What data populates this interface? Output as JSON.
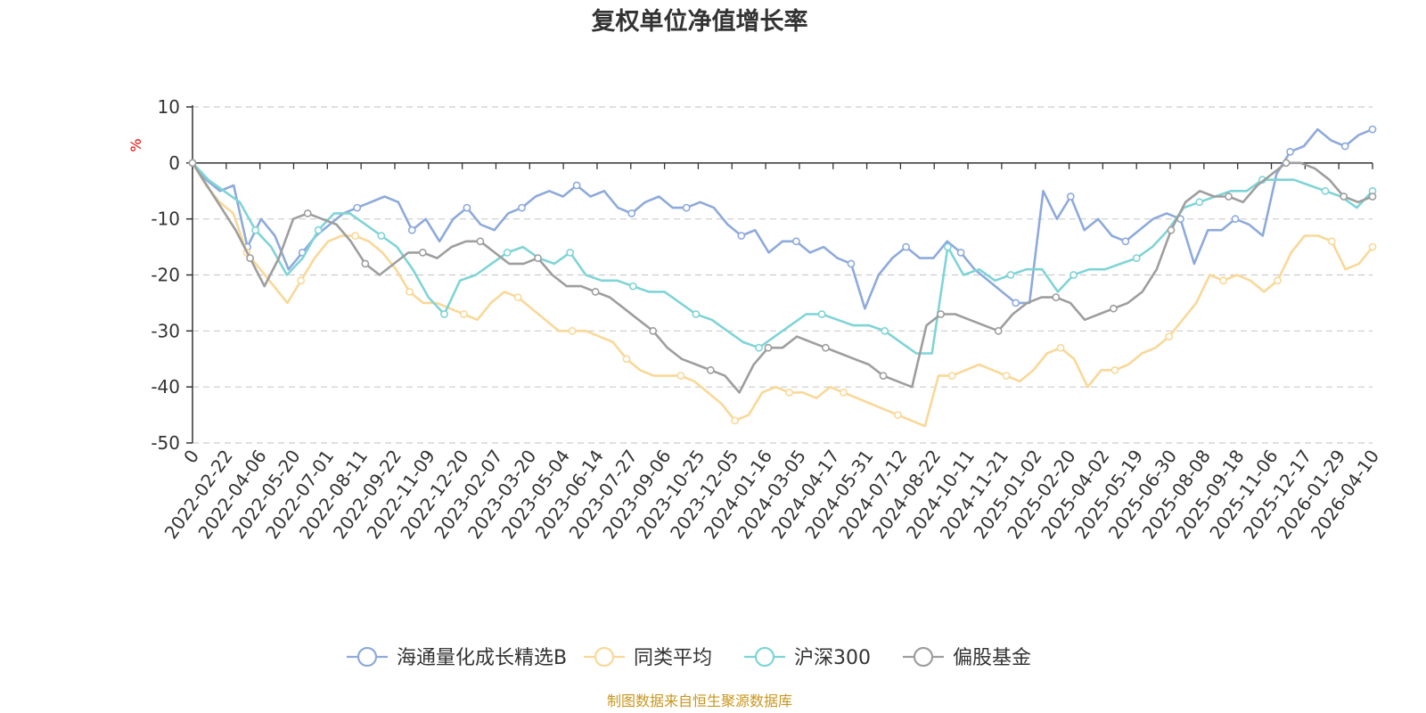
{
  "chart_data": {
    "type": "line",
    "title": "复权单位净值增长率",
    "ylabel": "%",
    "xlabel": "",
    "ylim": [
      -50,
      10
    ],
    "yticks": [
      10,
      0,
      -10,
      -20,
      -30,
      -40,
      -50
    ],
    "grid": true,
    "legend_position": "bottom-center",
    "source": "制图数据来自恒生聚源数据库",
    "x_tick_labels": [
      "0",
      "2022-02-22",
      "2022-04-06",
      "2022-05-20",
      "2022-07-01",
      "2022-08-11",
      "2022-09-22",
      "2022-11-09",
      "2022-12-20",
      "2023-02-07",
      "2023-03-20",
      "2023-05-04",
      "2023-06-14",
      "2023-07-27",
      "2023-09-06",
      "2023-10-25",
      "2023-12-05",
      "2024-01-16",
      "2024-03-05",
      "2024-04-17",
      "2024-05-31",
      "2024-07-12",
      "2024-08-22",
      "2024-10-11",
      "2024-11-21",
      "2025-01-02",
      "2025-02-20",
      "2025-04-02",
      "2025-05-19",
      "2025-06-30",
      "2025-08-08",
      "2025-09-18",
      "2025-11-06",
      "2025-12-17",
      "2026-01-29",
      "2026-04-10"
    ],
    "series": [
      {
        "name": "海通量化成长精选B",
        "color": "#8eaadb",
        "values": [
          0,
          -3,
          -5,
          -4,
          -15,
          -10,
          -13,
          -19,
          -16,
          -13,
          -11,
          -9,
          -8,
          -7,
          -6,
          -7,
          -12,
          -10,
          -14,
          -10,
          -8,
          -11,
          -12,
          -9,
          -8,
          -6,
          -5,
          -6,
          -4,
          -6,
          -5,
          -8,
          -9,
          -7,
          -6,
          -8,
          -8,
          -7,
          -8,
          -11,
          -13,
          -12,
          -16,
          -14,
          -14,
          -16,
          -15,
          -17,
          -18,
          -26,
          -20,
          -17,
          -15,
          -17,
          -17,
          -14,
          -16,
          -19,
          -21,
          -23,
          -25,
          -25,
          -5,
          -10,
          -6,
          -12,
          -10,
          -13,
          -14,
          -12,
          -10,
          -9,
          -10,
          -18,
          -12,
          -12,
          -10,
          -11,
          -13,
          -2,
          2,
          3,
          6,
          4,
          3,
          5,
          6
        ]
      },
      {
        "name": "同类平均",
        "color": "#f9d898",
        "values": [
          0,
          -4,
          -7,
          -9,
          -16,
          -19,
          -22,
          -25,
          -21,
          -17,
          -14,
          -13,
          -13,
          -14,
          -16,
          -19,
          -23,
          -25,
          -25,
          -26,
          -27,
          -28,
          -25,
          -23,
          -24,
          -26,
          -28,
          -30,
          -30,
          -30,
          -31,
          -32,
          -35,
          -37,
          -38,
          -38,
          -38,
          -39,
          -41,
          -43,
          -46,
          -45,
          -41,
          -40,
          -41,
          -41,
          -42,
          -40,
          -41,
          -42,
          -43,
          -44,
          -45,
          -46,
          -47,
          -38,
          -38,
          -37,
          -36,
          -37,
          -38,
          -39,
          -37,
          -34,
          -33,
          -35,
          -40,
          -37,
          -37,
          -36,
          -34,
          -33,
          -31,
          -28,
          -25,
          -20,
          -21,
          -20,
          -21,
          -23,
          -21,
          -16,
          -13,
          -13,
          -14,
          -19,
          -18,
          -15
        ]
      },
      {
        "name": "沪深300",
        "color": "#7fd4d6",
        "values": [
          0,
          -3,
          -5,
          -7,
          -12,
          -15,
          -20,
          -17,
          -12,
          -9,
          -9,
          -11,
          -13,
          -15,
          -19,
          -24,
          -27,
          -21,
          -20,
          -18,
          -16,
          -15,
          -17,
          -18,
          -16,
          -20,
          -21,
          -21,
          -22,
          -23,
          -23,
          -25,
          -27,
          -28,
          -30,
          -32,
          -33,
          -31,
          -29,
          -27,
          -27,
          -28,
          -29,
          -29,
          -30,
          -32,
          -34,
          -34,
          -15,
          -20,
          -19,
          -21,
          -20,
          -19,
          -19,
          -23,
          -20,
          -19,
          -19,
          -18,
          -17,
          -15,
          -12,
          -8,
          -7,
          -6,
          -5,
          -5,
          -3,
          -3,
          -3,
          -4,
          -5,
          -6,
          -8,
          -5
        ]
      },
      {
        "name": "偏股基金",
        "color": "#9e9e9e",
        "values": [
          0,
          -4,
          -8,
          -12,
          -17,
          -22,
          -17,
          -10,
          -9,
          -10,
          -11,
          -14,
          -18,
          -20,
          -18,
          -16,
          -16,
          -17,
          -15,
          -14,
          -14,
          -16,
          -18,
          -18,
          -17,
          -20,
          -22,
          -22,
          -23,
          -24,
          -26,
          -28,
          -30,
          -33,
          -35,
          -36,
          -37,
          -38,
          -41,
          -36,
          -33,
          -33,
          -31,
          -32,
          -33,
          -34,
          -35,
          -36,
          -38,
          -39,
          -40,
          -29,
          -27,
          -27,
          -28,
          -29,
          -30,
          -27,
          -25,
          -24,
          -24,
          -25,
          -28,
          -27,
          -26,
          -25,
          -23,
          -19,
          -12,
          -7,
          -5,
          -6,
          -6,
          -7,
          -4,
          -2,
          0,
          0,
          -1,
          -3,
          -6,
          -7,
          -6
        ]
      }
    ]
  }
}
